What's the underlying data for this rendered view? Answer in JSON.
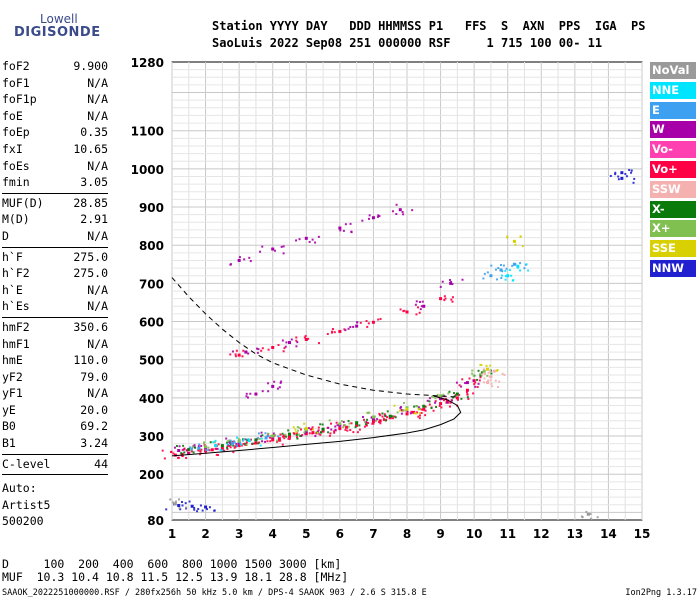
{
  "logo": {
    "line1": "Lowell",
    "line2": "DIGISONDE"
  },
  "header": {
    "line1": "Station YYYY DAY   DDD HHMMSS P1   FFS  S  AXN  PPS  IGA  PS",
    "line2": "SaoLuis 2022 Sep08 251 000000 RSF     1 715 100 00- 11"
  },
  "params": [
    {
      "label": "foF2",
      "value": "9.900"
    },
    {
      "label": "foF1",
      "value": "N/A"
    },
    {
      "label": "foF1p",
      "value": "N/A"
    },
    {
      "label": "foE",
      "value": "N/A"
    },
    {
      "label": "foEp",
      "value": "0.35"
    },
    {
      "label": "fxI",
      "value": "10.65"
    },
    {
      "label": "foEs",
      "value": "N/A"
    },
    {
      "label": "fmin",
      "value": "3.05"
    },
    {
      "sep": true
    },
    {
      "label": "MUF(D)",
      "value": "28.85"
    },
    {
      "label": "M(D)",
      "value": "2.91"
    },
    {
      "label": "D",
      "value": "N/A"
    },
    {
      "sep": true
    },
    {
      "label": "h`F",
      "value": "275.0"
    },
    {
      "label": "h`F2",
      "value": "275.0"
    },
    {
      "label": "h`E",
      "value": "N/A"
    },
    {
      "label": "h`Es",
      "value": "N/A"
    },
    {
      "sep": true
    },
    {
      "label": "hmF2",
      "value": "350.6"
    },
    {
      "label": "hmF1",
      "value": "N/A"
    },
    {
      "label": "hmE",
      "value": "110.0"
    },
    {
      "label": "yF2",
      "value": "79.0"
    },
    {
      "label": "yF1",
      "value": "N/A"
    },
    {
      "label": "yE",
      "value": "20.0"
    },
    {
      "label": "B0",
      "value": "69.2"
    },
    {
      "label": "B1",
      "value": "3.24"
    },
    {
      "sep": true
    },
    {
      "label": "C-level",
      "value": "44"
    },
    {
      "sep": true
    }
  ],
  "auto": {
    "line1": "Auto:",
    "line2": "Artist5",
    "line3": "500200"
  },
  "legend": [
    {
      "label": "NoVal",
      "color": "#9a9a9a"
    },
    {
      "label": "NNE",
      "color": "#00e5ff"
    },
    {
      "label": "E",
      "color": "#3ea0f0"
    },
    {
      "label": "W",
      "color": "#a800a8"
    },
    {
      "label": "Vo-",
      "color": "#ff40b0"
    },
    {
      "label": "Vo+",
      "color": "#ff0044"
    },
    {
      "label": "SSW",
      "color": "#f5b0b0"
    },
    {
      "label": "X-",
      "color": "#0a7a0a"
    },
    {
      "label": "X+",
      "color": "#80c050"
    },
    {
      "label": "SSE",
      "color": "#d8d000"
    },
    {
      "label": "NNW",
      "color": "#2020d0"
    }
  ],
  "footer": {
    "line1": "D     100  200  400  600  800 1000 1500 3000 [km]",
    "line2": "MUF  10.3 10.4 10.8 11.5 12.5 13.9 18.1 28.8 [MHz]",
    "file": "SAAOK_2022251000000.RSF / 280fx256h 50 kHz 5.0 km / DPS-4 SAAOK 903 / 2.6 S 315.8 E",
    "version": "Ion2Png 1.3.17"
  },
  "chart_data": {
    "type": "scatter",
    "title": "",
    "xlabel": "",
    "ylabel": "",
    "xlim": [
      1,
      15
    ],
    "ylim": [
      80,
      1280
    ],
    "x_ticks": [
      1,
      2,
      3,
      4,
      5,
      6,
      7,
      8,
      9,
      10,
      11,
      12,
      13,
      14,
      15
    ],
    "y_ticks": [
      80,
      200,
      300,
      400,
      500,
      600,
      700,
      800,
      900,
      1000,
      1100,
      1280
    ],
    "grid": true,
    "legend_position": "right",
    "series": [
      {
        "name": "Vo+",
        "color": "#ff0044",
        "points": [
          [
            1.1,
            250
          ],
          [
            1.5,
            255
          ],
          [
            2,
            262
          ],
          [
            2.5,
            268
          ],
          [
            3,
            275
          ],
          [
            3.5,
            282
          ],
          [
            4,
            290
          ],
          [
            4.5,
            298
          ],
          [
            5,
            306
          ],
          [
            5.5,
            313
          ],
          [
            6,
            320
          ],
          [
            6.5,
            328
          ],
          [
            7,
            338
          ],
          [
            7.5,
            348
          ],
          [
            8,
            358
          ],
          [
            8.5,
            370
          ],
          [
            9,
            385
          ],
          [
            9.5,
            400
          ],
          [
            9.8,
            420
          ],
          [
            10,
            445
          ],
          [
            1.3,
            252
          ],
          [
            2.2,
            264
          ],
          [
            3.2,
            278
          ],
          [
            4.2,
            293
          ],
          [
            5.2,
            309
          ],
          [
            6.2,
            323
          ],
          [
            7.2,
            340
          ],
          [
            8.2,
            362
          ],
          [
            9.2,
            392
          ],
          [
            3,
            512
          ],
          [
            4,
            532
          ],
          [
            5,
            553
          ],
          [
            6,
            574
          ],
          [
            7,
            598
          ],
          [
            8,
            625
          ],
          [
            9,
            660
          ]
        ]
      },
      {
        "name": "W",
        "color": "#a800a8",
        "points": [
          [
            1.2,
            262
          ],
          [
            2,
            270
          ],
          [
            3,
            283
          ],
          [
            4,
            297
          ],
          [
            5,
            312
          ],
          [
            6,
            328
          ],
          [
            7,
            345
          ],
          [
            8,
            368
          ],
          [
            9,
            398
          ],
          [
            9.8,
            440
          ],
          [
            3,
            760
          ],
          [
            4,
            790
          ],
          [
            5,
            818
          ],
          [
            6,
            845
          ],
          [
            7,
            872
          ],
          [
            7.8,
            893
          ],
          [
            3.2,
            520
          ],
          [
            4.5,
            545
          ],
          [
            6.5,
            588
          ],
          [
            8.5,
            640
          ],
          [
            9.3,
            700
          ],
          [
            3.5,
            410
          ],
          [
            4,
            430
          ]
        ]
      },
      {
        "name": "X-",
        "color": "#0a7a0a",
        "points": [
          [
            1.5,
            265
          ],
          [
            2.5,
            275
          ],
          [
            3.5,
            290
          ],
          [
            4.5,
            305
          ],
          [
            5.5,
            318
          ],
          [
            6.5,
            335
          ],
          [
            7.5,
            352
          ],
          [
            8.5,
            378
          ],
          [
            9.5,
            410
          ],
          [
            10.2,
            460
          ]
        ]
      },
      {
        "name": "X+",
        "color": "#80c050",
        "points": [
          [
            2,
            272
          ],
          [
            3,
            286
          ],
          [
            4,
            300
          ],
          [
            5,
            316
          ],
          [
            6,
            332
          ],
          [
            7,
            350
          ],
          [
            8,
            374
          ],
          [
            9,
            405
          ],
          [
            10.3,
            470
          ]
        ]
      },
      {
        "name": "E",
        "color": "#3ea0f0",
        "points": [
          [
            1.8,
            268
          ],
          [
            2.8,
            280
          ],
          [
            3.8,
            295
          ],
          [
            10.5,
            720
          ],
          [
            10.8,
            735
          ],
          [
            11.2,
            750
          ]
        ]
      },
      {
        "name": "NNE",
        "color": "#00e5ff",
        "points": [
          [
            2.3,
            275
          ],
          [
            3.3,
            288
          ],
          [
            11,
            720
          ],
          [
            11.3,
            745
          ]
        ]
      },
      {
        "name": "SSE",
        "color": "#d8d000",
        "points": [
          [
            5,
            320
          ],
          [
            8,
            370
          ],
          [
            10.4,
            475
          ],
          [
            11.2,
            810
          ]
        ]
      },
      {
        "name": "SSW",
        "color": "#f5b0b0",
        "points": [
          [
            10.5,
            455
          ],
          [
            10.6,
            470
          ],
          [
            10.4,
            440
          ]
        ]
      },
      {
        "name": "NNW",
        "color": "#2020d0",
        "points": [
          [
            1.2,
            118
          ],
          [
            1.6,
            116
          ],
          [
            2,
            114
          ],
          [
            14.4,
            990
          ],
          [
            14.4,
            975
          ]
        ]
      },
      {
        "name": "NoVal",
        "color": "#9a9a9a",
        "points": [
          [
            1.1,
            122
          ],
          [
            13.4,
            95
          ]
        ]
      }
    ],
    "curves": [
      {
        "style": "dashed",
        "points": [
          [
            1,
            715
          ],
          [
            1.5,
            665
          ],
          [
            2,
            620
          ],
          [
            2.5,
            580
          ],
          [
            3,
            545
          ],
          [
            3.5,
            515
          ],
          [
            4,
            492
          ],
          [
            5,
            460
          ],
          [
            6,
            436
          ],
          [
            7,
            420
          ],
          [
            8,
            410
          ],
          [
            9,
            405
          ],
          [
            9.5,
            402
          ]
        ]
      },
      {
        "style": "solid",
        "points": [
          [
            1,
            248
          ],
          [
            2,
            255
          ],
          [
            3,
            262
          ],
          [
            4,
            270
          ],
          [
            5,
            278
          ],
          [
            6,
            286
          ],
          [
            7,
            296
          ],
          [
            8,
            308
          ],
          [
            8.5,
            316
          ],
          [
            9,
            330
          ],
          [
            9.4,
            345
          ],
          [
            9.6,
            362
          ],
          [
            9.5,
            380
          ],
          [
            9.2,
            395
          ],
          [
            8.8,
            405
          ]
        ]
      }
    ]
  }
}
